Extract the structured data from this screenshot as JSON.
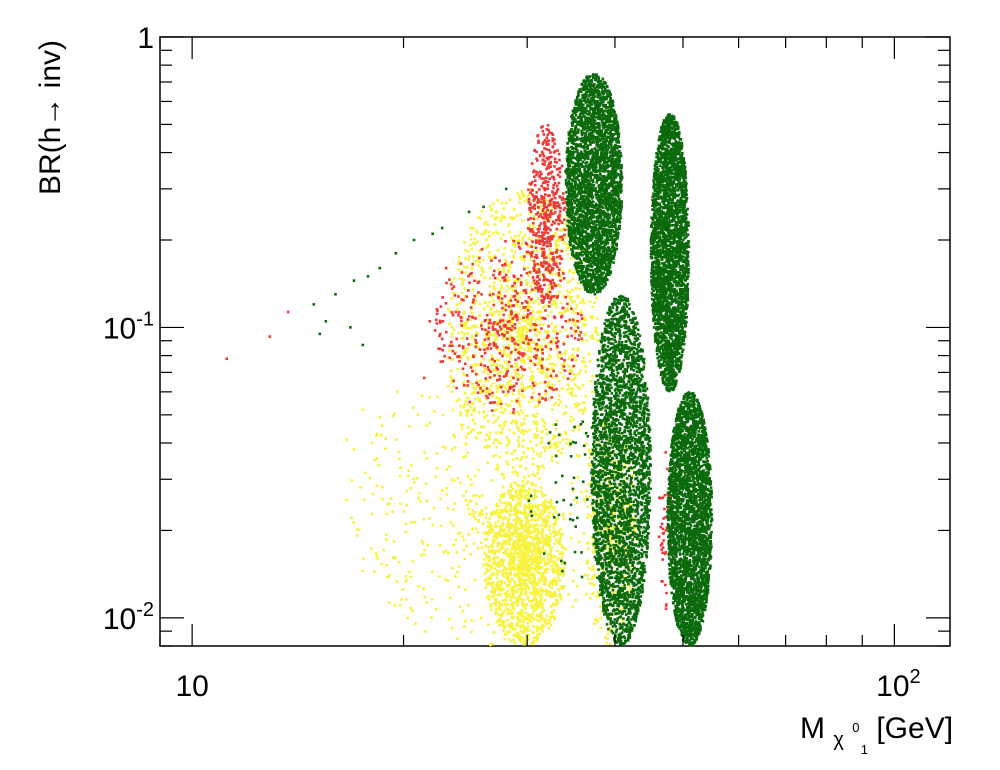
{
  "chart_data": {
    "type": "scatter",
    "title": "",
    "xlabel": {
      "base": "M",
      "sub": "χ",
      "sub_sup": "0",
      "sub_sub": "1",
      "unit": "[GeV]"
    },
    "ylabel": "BR(h→ inv)",
    "xscale": "log",
    "yscale": "log",
    "xlim": [
      9.0,
      120
    ],
    "ylim": [
      0.008,
      1.0
    ],
    "x_tick_labels": [
      {
        "value": 10,
        "base": "10",
        "exp": ""
      },
      {
        "value": 100,
        "base": "10",
        "exp": "2"
      }
    ],
    "y_tick_labels": [
      {
        "value": 1,
        "base": "1",
        "exp": ""
      },
      {
        "value": 0.1,
        "base": "10",
        "exp": "-1"
      },
      {
        "value": 0.01,
        "base": "10",
        "exp": "-2"
      }
    ],
    "grid": false,
    "legend": "none",
    "colors": {
      "yellow": "#f8f33c",
      "red": "#f03838",
      "green": "#0b6a0b"
    },
    "series": [
      {
        "color": "yellow",
        "regions": [
          {
            "x_range": [
              16.5,
              41
            ],
            "y_range": [
              0.008,
              0.065
            ],
            "density": "medium"
          },
          {
            "x_range": [
              23,
              38
            ],
            "y_range": [
              0.03,
              0.3
            ],
            "density": "high"
          },
          {
            "x_range": [
              26,
              34
            ],
            "y_range": [
              0.008,
              0.03
            ],
            "density": "high"
          },
          {
            "x_range": [
              36,
              43
            ],
            "y_range": [
              0.008,
              0.05
            ],
            "density": "medium"
          }
        ],
        "points": [
          [
            16.6,
            0.041
          ],
          [
            17.5,
            0.052
          ],
          [
            18.5,
            0.049
          ],
          [
            19.6,
            0.06
          ],
          [
            18.2,
            0.035
          ],
          [
            17.0,
            0.038
          ],
          [
            20.5,
            0.028
          ],
          [
            21.8,
            0.022
          ]
        ]
      },
      {
        "color": "red",
        "regions": [
          {
            "x_range": [
              22,
              36
            ],
            "y_range": [
              0.05,
              0.2
            ],
            "density": "medium"
          },
          {
            "x_range": [
              30,
              34
            ],
            "y_range": [
              0.12,
              0.5
            ],
            "density": "medium"
          },
          {
            "x_range": [
              46,
              48.5
            ],
            "y_range": [
              0.01,
              0.04
            ],
            "density": "low"
          }
        ],
        "points": [
          [
            11.2,
            0.078
          ],
          [
            12.9,
            0.093
          ],
          [
            13.7,
            0.113
          ],
          [
            21.4,
            0.067
          ],
          [
            21.8,
            0.105
          ],
          [
            23.0,
            0.16
          ],
          [
            32.0,
            0.45
          ],
          [
            31.3,
            0.39
          ],
          [
            30.8,
            0.32
          ]
        ]
      },
      {
        "color": "green",
        "regions": [
          {
            "x_range": [
              34,
              41
            ],
            "y_range": [
              0.13,
              0.75
            ],
            "density": "solid"
          },
          {
            "x_range": [
              37,
              45
            ],
            "y_range": [
              0.008,
              0.13
            ],
            "density": "solid"
          },
          {
            "x_range": [
              45,
              51
            ],
            "y_range": [
              0.06,
              0.55
            ],
            "density": "solid"
          },
          {
            "x_range": [
              47.5,
              55
            ],
            "y_range": [
              0.008,
              0.06
            ],
            "density": "solid"
          },
          {
            "x_range": [
              30,
              40
            ],
            "y_range": [
              0.012,
              0.05
            ],
            "density": "low"
          }
        ],
        "points": [
          [
            14.9,
            0.12
          ],
          [
            15.5,
            0.105
          ],
          [
            16.0,
            0.13
          ],
          [
            17.0,
            0.145
          ],
          [
            17.8,
            0.15
          ],
          [
            18.5,
            0.16
          ],
          [
            19.5,
            0.18
          ],
          [
            20.7,
            0.2
          ],
          [
            22.0,
            0.21
          ],
          [
            22.7,
            0.22
          ],
          [
            24.8,
            0.25
          ],
          [
            26.0,
            0.26
          ],
          [
            28.0,
            0.3
          ],
          [
            16.8,
            0.1
          ],
          [
            17.5,
            0.087
          ],
          [
            15.2,
            0.095
          ]
        ]
      }
    ]
  }
}
